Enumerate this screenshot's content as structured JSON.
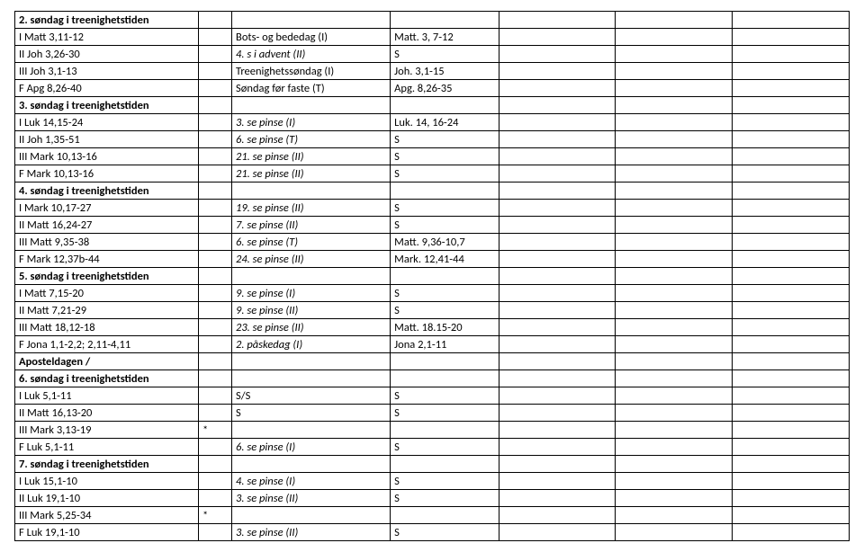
{
  "font": {
    "family": "Calibri",
    "size_pt": 10,
    "color": "#000000"
  },
  "border_color": "#000000",
  "background_color": "#ffffff",
  "columns_pct": [
    22,
    4,
    19,
    13,
    14,
    14,
    14
  ],
  "rows": [
    {
      "c": [
        "2. søndag i treenighetstiden",
        "",
        "",
        "",
        "",
        "",
        ""
      ],
      "bold": true
    },
    {
      "c": [
        "I Matt 3,11-12",
        "",
        "Bots- og bededag (I)",
        "Matt. 3, 7-12",
        "",
        "",
        ""
      ]
    },
    {
      "c": [
        "II Joh 3,26-30",
        "",
        "4. s i advent (II)",
        "S",
        "",
        "",
        ""
      ],
      "italicCols": [
        2
      ]
    },
    {
      "c": [
        "III Joh 3,1-13",
        "",
        "Treenighetssøndag (I)",
        "Joh. 3,1-15",
        "",
        "",
        ""
      ]
    },
    {
      "c": [
        "F Apg 8,26-40",
        "",
        "Søndag før faste (T)",
        "Apg. 8,26-35",
        "",
        "",
        ""
      ]
    },
    {
      "c": [
        "3. søndag i treenighetstiden",
        "",
        "",
        "",
        "",
        "",
        ""
      ],
      "bold": true
    },
    {
      "c": [
        "I Luk 14,15-24",
        "",
        "3. se pinse (I)",
        "Luk. 14, 16-24",
        "",
        "",
        ""
      ],
      "italicCols": [
        2
      ]
    },
    {
      "c": [
        "II Joh 1,35-51",
        "",
        "6. se pinse (T)",
        "S",
        "",
        "",
        ""
      ],
      "italicCols": [
        2
      ]
    },
    {
      "c": [
        "III Mark 10,13-16",
        "",
        "21. se pinse (II)",
        "S",
        "",
        "",
        ""
      ],
      "italicCols": [
        2
      ]
    },
    {
      "c": [
        "F Mark 10,13-16",
        "",
        "21. se pinse (II)",
        "S",
        "",
        "",
        ""
      ],
      "italicCols": [
        2
      ]
    },
    {
      "c": [
        "4. søndag i treenighetstiden",
        "",
        "",
        "",
        "",
        "",
        ""
      ],
      "bold": true
    },
    {
      "c": [
        "I Mark 10,17-27",
        "",
        "19. se pinse (II)",
        "S",
        "",
        "",
        ""
      ],
      "italicCols": [
        2
      ]
    },
    {
      "c": [
        "II Matt 16,24-27",
        "",
        "7. se pinse (II)",
        "S",
        "",
        "",
        ""
      ],
      "italicCols": [
        2
      ]
    },
    {
      "c": [
        "III Matt 9,35-38",
        "",
        "6. se pinse (T)",
        "Matt. 9,36-10,7",
        "",
        "",
        ""
      ],
      "italicCols": [
        2
      ]
    },
    {
      "c": [
        "F Mark 12,37b-44",
        "",
        "24. se pinse (II)",
        "Mark. 12,41-44",
        "",
        "",
        ""
      ],
      "italicCols": [
        2
      ]
    },
    {
      "c": [
        "5. søndag i treenighetstiden",
        "",
        "",
        "",
        "",
        "",
        ""
      ],
      "bold": true
    },
    {
      "c": [
        "I Matt 7,15-20",
        "",
        "9. se pinse (I)",
        "S",
        "",
        "",
        ""
      ],
      "italicCols": [
        2
      ]
    },
    {
      "c": [
        "II Matt 7,21-29",
        "",
        "9. se pinse (II)",
        "S",
        "",
        "",
        ""
      ],
      "italicCols": [
        2
      ]
    },
    {
      "c": [
        "III Matt 18,12-18",
        "",
        "23. se pinse (II)",
        "Matt. 18.15-20",
        "",
        "",
        ""
      ],
      "italicCols": [
        2
      ]
    },
    {
      "c": [
        "F Jona 1,1-2,2; 2,11-4,11",
        "",
        "2. påskedag (I)",
        "Jona 2,1-11",
        "",
        "",
        ""
      ],
      "italicCols": [
        2
      ]
    },
    {
      "c": [
        "Aposteldagen /",
        "",
        "",
        "",
        "",
        "",
        ""
      ],
      "bold": true
    },
    {
      "c": [
        "6. søndag i treenighetstiden",
        "",
        "",
        "",
        "",
        "",
        ""
      ],
      "bold": true
    },
    {
      "c": [
        "I Luk 5,1-11",
        "",
        "S/S",
        "S",
        "",
        "",
        ""
      ]
    },
    {
      "c": [
        "II Matt 16,13-20",
        "",
        "S",
        "S",
        "",
        "",
        ""
      ]
    },
    {
      "c": [
        "III Mark 3,13-19",
        "*",
        "",
        "",
        "",
        "",
        ""
      ]
    },
    {
      "c": [
        "F Luk 5,1-11",
        "",
        "6. se pinse (I)",
        "S",
        "",
        "",
        ""
      ],
      "italicCols": [
        2
      ]
    },
    {
      "c": [
        "7. søndag i treenighetstiden",
        "",
        "",
        "",
        "",
        "",
        ""
      ],
      "bold": true
    },
    {
      "c": [
        "I Luk 15,1-10",
        "",
        "4. se pinse (I)",
        "S",
        "",
        "",
        ""
      ],
      "italicCols": [
        2
      ]
    },
    {
      "c": [
        "II Luk 19,1-10",
        "",
        "3. se pinse (II)",
        "S",
        "",
        "",
        ""
      ],
      "italicCols": [
        2
      ]
    },
    {
      "c": [
        "III Mark 5,25-34",
        "*",
        "",
        "",
        "",
        "",
        ""
      ]
    },
    {
      "c": [
        "F Luk 19,1-10",
        "",
        "3. se pinse (II)",
        "S",
        "",
        "",
        ""
      ],
      "italicCols": [
        2
      ]
    }
  ]
}
